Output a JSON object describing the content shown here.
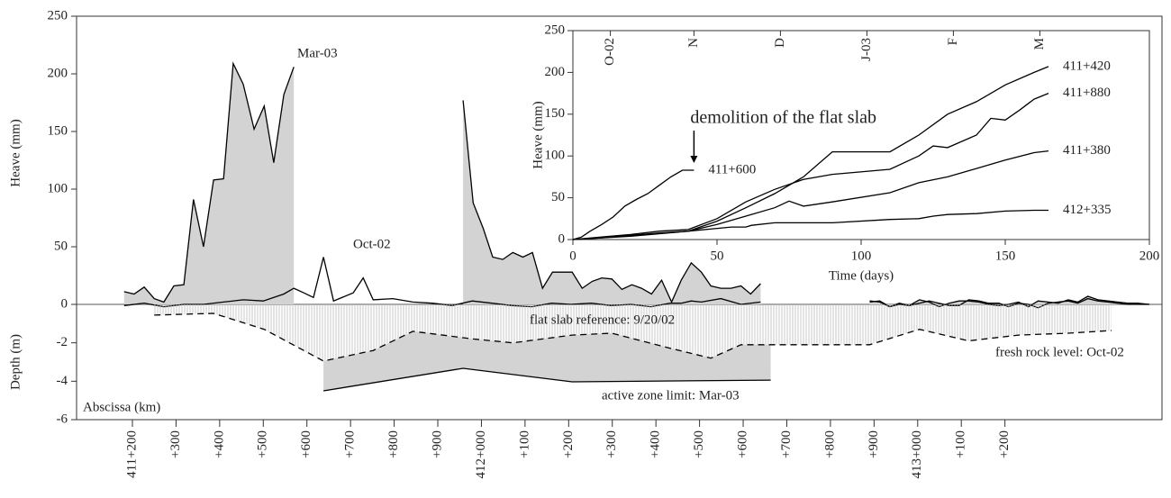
{
  "chart_data": [
    {
      "type": "area",
      "ylabel": "Heave (mm)",
      "ylim": [
        0,
        250
      ],
      "yticks": [
        0,
        50,
        100,
        150,
        200,
        250
      ],
      "series": [
        {
          "name": "Mar-03",
          "color": "#000000",
          "fill": "#d3d3d3",
          "x": [
            411.181,
            411.204,
            411.227,
            411.25,
            411.272,
            411.295,
            411.318,
            411.34,
            411.363,
            411.386,
            411.409,
            411.431,
            411.454,
            411.479,
            411.502,
            411.524,
            411.547,
            411.57,
            null,
            411.958,
            411.981,
            412.004,
            412.026,
            412.049,
            412.072,
            412.095,
            412.117,
            412.14,
            412.163,
            412.186,
            412.208,
            412.231,
            412.254,
            412.276,
            412.299,
            412.322,
            412.345,
            412.367,
            412.39,
            412.413,
            412.436,
            412.458,
            412.481,
            412.504,
            412.526,
            412.549,
            412.572,
            412.595,
            412.617,
            412.64,
            null,
            412.89,
            412.913,
            412.936,
            412.958,
            412.981,
            413.004,
            413.026,
            413.049,
            413.072,
            413.095,
            413.117,
            413.14,
            413.163,
            413.186,
            413.208,
            413.231,
            413.254,
            413.276,
            413.299,
            413.322,
            413.345,
            413.367,
            413.39,
            413.413,
            413.436,
            413.458,
            413.481,
            413.504,
            413.531
          ],
          "values": [
            11,
            9,
            15,
            5,
            2,
            16,
            17,
            91,
            50,
            108,
            109,
            209,
            191,
            152,
            172,
            123,
            182,
            206,
            null,
            177,
            88,
            66,
            41,
            39,
            45,
            41,
            45,
            14,
            28,
            28,
            28,
            14,
            20,
            23,
            22,
            13,
            17,
            14,
            9,
            21,
            2,
            21,
            36,
            28,
            16,
            14,
            14,
            16,
            9,
            18,
            null,
            2,
            3,
            -2,
            1,
            -1,
            4,
            2,
            -2,
            1,
            3,
            3,
            2,
            0,
            -1,
            0,
            2,
            -2,
            3,
            2,
            1,
            4,
            2,
            7,
            4,
            3,
            2,
            1,
            1,
            0
          ]
        },
        {
          "name": "Oct-02",
          "color": "#000000",
          "x": [
            411.181,
            411.227,
            411.272,
            411.318,
            411.363,
            411.409,
            411.454,
            411.5,
            411.547,
            411.57,
            411.593,
            411.615,
            411.638,
            411.661,
            411.706,
            411.729,
            411.752,
            411.797,
            411.843,
            411.888,
            411.933,
            411.979,
            412.024,
            412.07,
            412.115,
            412.161,
            412.206,
            412.252,
            412.297,
            412.343,
            412.388,
            412.433,
            412.458,
            412.481,
            412.504,
            412.549,
            412.595,
            412.64,
            null,
            412.89,
            412.913,
            412.936,
            412.958,
            412.981,
            413.004,
            413.026,
            413.049,
            413.072,
            413.095,
            413.117,
            413.14,
            413.163,
            413.186,
            413.208,
            413.231,
            413.254,
            413.276,
            413.299,
            413.322,
            413.345,
            413.367,
            413.39,
            413.413,
            413.436,
            413.458,
            413.481,
            413.504,
            413.531
          ],
          "values": [
            -1,
            1,
            -2,
            0,
            0,
            2,
            4,
            3,
            9,
            14,
            10,
            6,
            41,
            3,
            10,
            23,
            4,
            5,
            2,
            1,
            -1,
            3,
            1,
            -1,
            -2,
            1,
            0,
            1,
            -1,
            0,
            -2,
            1,
            1,
            3,
            2,
            5,
            0,
            2,
            null,
            3,
            2,
            -2,
            0,
            -1,
            1,
            3,
            1,
            -1,
            -1,
            4,
            3,
            1,
            1,
            -2,
            1,
            0,
            -3,
            1,
            2,
            3,
            1,
            5,
            3,
            2,
            1,
            0,
            0,
            0
          ]
        }
      ]
    },
    {
      "type": "area",
      "ylabel": "Depth (m)",
      "xlabel": "Abscissa (km)",
      "xlim": [
        411.072,
        413.56
      ],
      "xticks": [
        {
          "value": 411.2,
          "label": "411+200"
        },
        {
          "value": 411.3,
          "label": "+300"
        },
        {
          "value": 411.4,
          "label": "+400"
        },
        {
          "value": 411.5,
          "label": "+500"
        },
        {
          "value": 411.6,
          "label": "+600"
        },
        {
          "value": 411.7,
          "label": "+700"
        },
        {
          "value": 411.8,
          "label": "+800"
        },
        {
          "value": 411.9,
          "label": "+900"
        },
        {
          "value": 412.0,
          "label": "412+000"
        },
        {
          "value": 412.1,
          "label": "+100"
        },
        {
          "value": 412.2,
          "label": "+200"
        },
        {
          "value": 412.3,
          "label": "+300"
        },
        {
          "value": 412.4,
          "label": "+400"
        },
        {
          "value": 412.5,
          "label": "+500"
        },
        {
          "value": 412.6,
          "label": "+600"
        },
        {
          "value": 412.7,
          "label": "+700"
        },
        {
          "value": 412.8,
          "label": "+800"
        },
        {
          "value": 412.9,
          "label": "+900"
        },
        {
          "value": 413.0,
          "label": "413+000"
        },
        {
          "value": 413.1,
          "label": "+100"
        },
        {
          "value": 413.2,
          "label": "+200"
        }
      ],
      "ylim": [
        -6,
        0
      ],
      "yticks": [
        -6,
        -4,
        -2
      ],
      "annotation": "flat slab reference: 9/20/02",
      "series": [
        {
          "name": "fresh rock level: Oct-02",
          "color": "#000000",
          "dashed": true,
          "hatch": "#b8b8b8",
          "x": [
            411.25,
            411.386,
            411.502,
            411.638,
            411.752,
            411.843,
            411.981,
            412.072,
            412.208,
            412.299,
            412.436,
            412.526,
            412.595,
            412.89,
            413.004,
            413.117,
            413.231,
            413.345,
            413.444
          ],
          "values": [
            -0.56,
            -0.47,
            -1.3,
            -2.95,
            -2.4,
            -1.4,
            -1.8,
            -2.0,
            -1.6,
            -1.5,
            -2.3,
            -2.8,
            -2.1,
            -2.1,
            -1.3,
            -1.9,
            -1.6,
            -1.5,
            -1.36
          ]
        },
        {
          "name": "active zone limit: Mar-03",
          "color": "#000000",
          "fill": "#d3d3d3",
          "fill_to_series": 0,
          "x": [
            411.638,
            411.958,
            412.208,
            412.663
          ],
          "values": [
            -4.5,
            -3.33,
            -4.03,
            -3.94
          ]
        }
      ]
    },
    {
      "type": "line",
      "xlabel": "Time (days)",
      "ylabel": "Heave (mm)",
      "xlim": [
        0,
        200
      ],
      "xticks": [
        0,
        50,
        100,
        150,
        200
      ],
      "ylim": [
        0,
        250
      ],
      "yticks": [
        0,
        50,
        100,
        150,
        200,
        250
      ],
      "top_ticks": [
        {
          "value": 13,
          "label": "O-02"
        },
        {
          "value": 42,
          "label": "N"
        },
        {
          "value": 72,
          "label": "D"
        },
        {
          "value": 102,
          "label": "J-03"
        },
        {
          "value": 132,
          "label": "F"
        },
        {
          "value": 162,
          "label": "M"
        }
      ],
      "annotation": "demolition of the flat slab",
      "series": [
        {
          "name": "411+600",
          "color": "#000000",
          "x": [
            0,
            3,
            6,
            10,
            14,
            18,
            22,
            26,
            30,
            34,
            38,
            42
          ],
          "values": [
            0,
            3,
            10,
            18,
            27,
            40,
            48,
            55,
            65,
            75,
            83,
            83
          ]
        },
        {
          "name": "411+420",
          "color": "#000000",
          "x": [
            0,
            10,
            20,
            30,
            40,
            50,
            60,
            70,
            80,
            90,
            110,
            120,
            130,
            140,
            150,
            160,
            165
          ],
          "values": [
            0,
            2,
            5,
            8,
            10,
            22,
            38,
            55,
            75,
            105,
            105,
            125,
            150,
            165,
            185,
            200,
            207
          ]
        },
        {
          "name": "411+880",
          "color": "#000000",
          "x": [
            0,
            10,
            20,
            30,
            40,
            50,
            60,
            70,
            80,
            90,
            110,
            120,
            125,
            130,
            140,
            145,
            150,
            155,
            160,
            165
          ],
          "values": [
            0,
            3,
            6,
            10,
            12,
            25,
            45,
            60,
            72,
            78,
            84,
            100,
            112,
            110,
            125,
            145,
            143,
            155,
            168,
            175
          ]
        },
        {
          "name": "411+380",
          "color": "#000000",
          "x": [
            0,
            20,
            40,
            50,
            60,
            70,
            75,
            80,
            90,
            110,
            120,
            130,
            140,
            150,
            160,
            165
          ],
          "values": [
            0,
            4,
            10,
            18,
            28,
            38,
            46,
            40,
            45,
            56,
            68,
            75,
            85,
            95,
            104,
            106
          ]
        },
        {
          "name": "412+335",
          "color": "#000000",
          "x": [
            0,
            20,
            40,
            55,
            60,
            62,
            70,
            90,
            110,
            120,
            125,
            130,
            140,
            150,
            160,
            165
          ],
          "values": [
            0,
            5,
            10,
            15,
            15,
            17,
            20,
            20,
            24,
            25,
            28,
            30,
            31,
            34,
            35,
            35
          ]
        }
      ]
    }
  ]
}
